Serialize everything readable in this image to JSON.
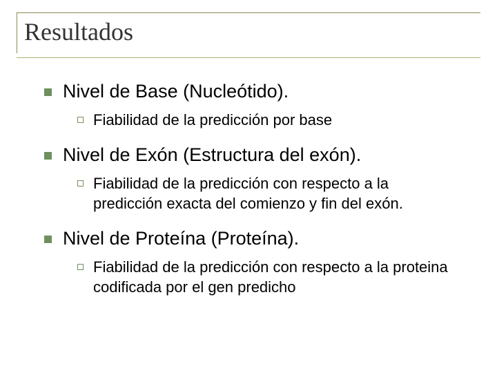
{
  "colors": {
    "title_text": "#333333",
    "body_text": "#000000",
    "title_border": "#8a8a55",
    "title_rule": "#b0b070",
    "lvl1_bullet": "#6f8f5f",
    "lvl2_bullet_border": "#6f8f5f",
    "background": "#ffffff"
  },
  "title": "Resultados",
  "items": [
    {
      "text": "Nivel de Base (Nucleótido).",
      "sub": [
        {
          "text": "Fiabilidad de la predicción por base"
        }
      ]
    },
    {
      "text": "Nivel de Exón (Estructura del exón).",
      "sub": [
        {
          "text": "Fiabilidad de la predicción con respecto a la predicción exacta del comienzo y fin del exón."
        }
      ]
    },
    {
      "text": "Nivel de Proteína (Proteína).",
      "sub": [
        {
          "text": "Fiabilidad de la predicción con respecto a la proteina codificada por el gen predicho"
        }
      ]
    }
  ]
}
